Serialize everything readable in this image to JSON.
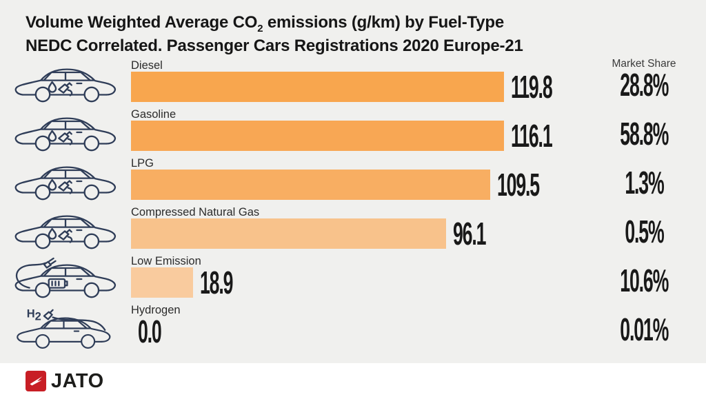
{
  "title": {
    "line1_prefix": "Volume Weighted Average CO",
    "line1_subscript": "2",
    "line1_suffix": " emissions (g/km) by Fuel-Type",
    "line2": "NEDC Correlated. Passenger Cars Registrations 2020 Europe-21"
  },
  "market_share_header": "Market Share",
  "rows": [
    {
      "label": "Diesel",
      "value": 119.8,
      "value_text": "119.8",
      "share": "28.8%",
      "icon": "diesel-car-icon",
      "bar_color": "#F8A64E"
    },
    {
      "label": "Gasoline",
      "value": 116.1,
      "value_text": "116.1",
      "share": "58.8%",
      "icon": "gasoline-car-icon",
      "bar_color": "#F8A754"
    },
    {
      "label": "LPG",
      "value": 109.5,
      "value_text": "109.5",
      "share": "1.3%",
      "icon": "lpg-car-icon",
      "bar_color": "#F8AE62"
    },
    {
      "label": "Compressed Natural Gas",
      "value": 96.1,
      "value_text": "96.1",
      "share": "0.5%",
      "icon": "cng-car-icon",
      "bar_color": "#F8C28B"
    },
    {
      "label": "Low Emission",
      "value": 18.9,
      "value_text": "18.9",
      "share": "10.6%",
      "icon": "electric-car-icon",
      "bar_color": "#F9CB9E"
    },
    {
      "label": "Hydrogen",
      "value": 0.0,
      "value_text": "0.0",
      "share": "0.01%",
      "icon": "hydrogen-car-icon",
      "bar_color": null
    }
  ],
  "footer": {
    "brand": "JATO"
  },
  "colors": {
    "chart_background": "#F0F0EE",
    "icon_navy": "#2F3D58",
    "brand_red": "#C81E25",
    "text_dark": "#191919"
  },
  "chart_data": {
    "type": "bar",
    "orientation": "horizontal",
    "title": "Volume Weighted Average CO2 emissions (g/km) by Fuel-Type",
    "subtitle": "NEDC Correlated. Passenger Cars Registrations 2020 Europe-21",
    "categories": [
      "Diesel",
      "Gasoline",
      "LPG",
      "Compressed Natural Gas",
      "Low Emission",
      "Hydrogen"
    ],
    "series": [
      {
        "name": "CO2 emissions (g/km)",
        "values": [
          119.8,
          116.1,
          109.5,
          96.1,
          18.9,
          0.0
        ]
      },
      {
        "name": "Market Share (%)",
        "values": [
          28.8,
          58.8,
          1.3,
          0.5,
          10.6,
          0.01
        ]
      }
    ],
    "data_labels": [
      "119.8",
      "116.1",
      "109.5",
      "96.1",
      "18.9",
      "0.0"
    ],
    "share_labels": [
      "28.8%",
      "58.8%",
      "1.3%",
      "0.5%",
      "10.6%",
      "0.01%"
    ],
    "xlim": [
      0,
      125
    ],
    "grid": false,
    "legend": false,
    "bar_colors": [
      "#F8A64E",
      "#F8A754",
      "#F8AE62",
      "#F8C28B",
      "#F9CB9E",
      null
    ]
  }
}
